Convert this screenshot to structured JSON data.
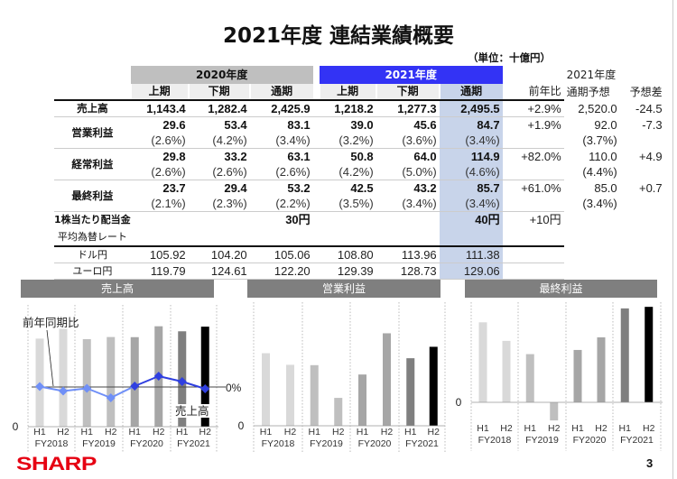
{
  "title": "2021年度 連結業績概要",
  "unit": "（単位：十億円）",
  "table": {
    "fy2020": "2020年度",
    "fy2021": "2021年度",
    "sub": [
      "上期",
      "下期",
      "通期"
    ],
    "yoy_header": "前年比",
    "forecast_title": "2021年度",
    "forecast_headers": [
      "通期予想",
      "予想差"
    ],
    "sales": {
      "label": "売上高",
      "v": [
        "1,143.4",
        "1,282.4",
        "2,425.9",
        "1,218.2",
        "1,277.3",
        "2,495.5"
      ],
      "yoy": "+2.9%",
      "fc": "2,520.0",
      "diff": "-24.5"
    },
    "op": {
      "label": "営業利益",
      "v": [
        "29.6",
        "53.4",
        "83.1",
        "39.0",
        "45.6",
        "84.7"
      ],
      "pct": [
        "(2.6%)",
        "(4.2%)",
        "(3.4%)",
        "(3.2%)",
        "(3.6%)",
        "(3.4%)"
      ],
      "yoy": "+1.9%",
      "fc": "92.0",
      "fc_pct": "(3.7%)",
      "diff": "-7.3"
    },
    "ord": {
      "label": "経常利益",
      "v": [
        "29.8",
        "33.2",
        "63.1",
        "50.8",
        "64.0",
        "114.9"
      ],
      "pct": [
        "(2.6%)",
        "(2.6%)",
        "(2.6%)",
        "(4.2%)",
        "(5.0%)",
        "(4.6%)"
      ],
      "yoy": "+82.0%",
      "fc": "110.0",
      "fc_pct": "(4.4%)",
      "diff": "+4.9"
    },
    "net": {
      "label": "最終利益",
      "v": [
        "23.7",
        "29.4",
        "53.2",
        "42.5",
        "43.2",
        "85.7"
      ],
      "pct": [
        "(2.1%)",
        "(2.3%)",
        "(2.2%)",
        "(3.5%)",
        "(3.4%)",
        "(3.4%)"
      ],
      "yoy": "+61.0%",
      "fc": "85.0",
      "fc_pct": "(3.4%)",
      "diff": "+0.7"
    },
    "div": {
      "label": "1株当たり配当金",
      "fy2020": "30円",
      "fy2021": "40円",
      "yoy": "+10円"
    },
    "fx_label": "平均為替レート",
    "usd": {
      "label": "ドル円",
      "v": [
        "105.92",
        "104.20",
        "105.06",
        "108.80",
        "113.96",
        "111.38"
      ]
    },
    "eur": {
      "label": "ユーロ円",
      "v": [
        "119.79",
        "124.61",
        "122.20",
        "129.39",
        "128.73",
        "129.06"
      ]
    }
  },
  "chart_data": [
    {
      "type": "bar",
      "title": "売上高",
      "categories": [
        "H1",
        "H2",
        "H1",
        "H2",
        "H1",
        "H2",
        "H1",
        "H2"
      ],
      "groups": [
        "FY2018",
        "FY2019",
        "FY2020",
        "FY2021"
      ],
      "values": [
        1125,
        1250,
        1118,
        1145,
        1143.4,
        1282.4,
        1218.2,
        1277.3
      ],
      "zero_label": "0",
      "bar_label": "売上高",
      "line": {
        "name": "前年同期比",
        "values": [
          0.5,
          -4.5,
          -1.5,
          -12,
          1,
          12,
          6,
          -2
        ],
        "zero_label": "0%"
      }
    },
    {
      "type": "bar",
      "title": "営業利益",
      "categories": [
        "H1",
        "H2",
        "H1",
        "H2",
        "H1",
        "H2",
        "H1",
        "H2"
      ],
      "groups": [
        "FY2018",
        "FY2019",
        "FY2020",
        "FY2021"
      ],
      "values": [
        41.9,
        35.2,
        35.0,
        16.1,
        29.6,
        53.4,
        39.0,
        45.6
      ],
      "zero_label": "0"
    },
    {
      "type": "bar",
      "title": "最終利益",
      "categories": [
        "H1",
        "H2",
        "H1",
        "H2",
        "H1",
        "H2",
        "H1",
        "H2"
      ],
      "groups": [
        "FY2018",
        "FY2019",
        "FY2020",
        "FY2021"
      ],
      "values": [
        36.2,
        27.8,
        21.8,
        -8.2,
        23.7,
        29.4,
        42.5,
        43.2
      ],
      "zero_label": "0"
    }
  ],
  "colors": {
    "fy2018": "#d9d9d9",
    "fy2019": "#bfbfbf",
    "fy2020": "#a6a6a6",
    "fy2021h1": "#7f7f7f",
    "fy2021h2": "#000000",
    "yoy_old": "#6f8ff7",
    "yoy_new": "#2f3fe0",
    "header_blue": "#3333f5",
    "logo": "#e60012"
  },
  "logo": "SHARP",
  "page_number": "3"
}
